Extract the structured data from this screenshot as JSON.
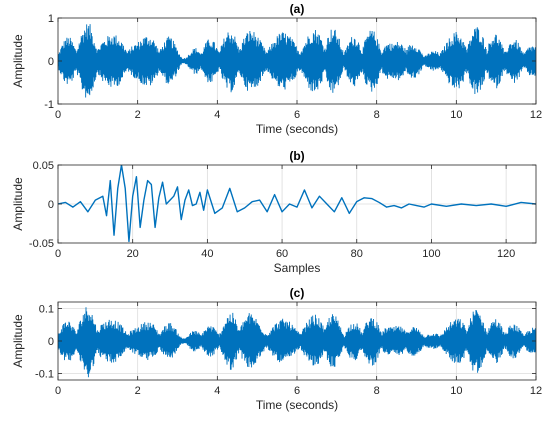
{
  "chart_data": [
    {
      "type": "line",
      "title": "(a)",
      "xlabel": "Time (seconds)",
      "ylabel": "Amplitude",
      "xlim": [
        0,
        12
      ],
      "ylim": [
        -1,
        1
      ],
      "xticks": [
        0,
        2,
        4,
        6,
        8,
        10,
        12
      ],
      "yticks": [
        -1,
        0,
        1
      ],
      "grid": true,
      "color": "#0072BD",
      "series": [
        {
          "x": [
            0.0,
            0.4,
            0.8,
            1.2,
            1.6,
            2.0,
            2.4,
            2.8,
            3.2,
            3.6,
            4.0,
            4.4,
            4.8,
            5.2,
            5.6,
            6.0,
            6.4,
            6.8,
            7.2,
            7.6,
            8.0,
            8.4,
            8.8,
            9.2,
            9.6,
            10.0,
            10.4,
            10.8,
            11.2,
            11.6,
            12.0
          ],
          "envelope": [
            0.45,
            0.65,
            0.95,
            0.6,
            0.7,
            0.5,
            0.7,
            0.6,
            0.1,
            0.5,
            0.55,
            0.8,
            0.75,
            0.6,
            0.7,
            0.6,
            0.75,
            0.9,
            0.5,
            0.7,
            0.75,
            0.4,
            0.75,
            0.1,
            0.5,
            0.7,
            0.85,
            0.75,
            0.55,
            0.5,
            0.35
          ]
        }
      ]
    },
    {
      "type": "line",
      "title": "(b)",
      "xlabel": "Samples",
      "ylabel": "Amplitude",
      "xlim": [
        0,
        128
      ],
      "ylim": [
        -0.05,
        0.05
      ],
      "xticks": [
        0,
        20,
        40,
        60,
        80,
        100,
        120
      ],
      "yticks": [
        -0.05,
        0,
        0.05
      ],
      "grid": true,
      "color": "#0072BD",
      "series": [
        {
          "x": [
            0,
            2,
            4,
            6,
            8,
            10,
            12,
            13,
            14,
            15,
            16,
            17,
            18,
            19,
            20,
            21,
            22,
            23,
            24,
            25,
            26,
            27,
            28,
            29,
            30,
            31,
            32,
            33,
            34,
            35,
            36,
            37,
            38,
            39,
            40,
            42,
            44,
            46,
            48,
            50,
            52,
            54,
            56,
            58,
            60,
            62,
            64,
            66,
            68,
            70,
            72,
            74,
            76,
            78,
            80,
            82,
            84,
            86,
            88,
            90,
            92,
            94,
            96,
            98,
            100,
            104,
            108,
            112,
            116,
            120,
            124,
            128
          ],
          "y": [
            0.0,
            0.002,
            -0.004,
            0.003,
            -0.01,
            0.005,
            0.01,
            -0.015,
            0.03,
            -0.04,
            0.02,
            0.05,
            0.02,
            -0.048,
            0.01,
            0.035,
            -0.03,
            0.005,
            0.03,
            0.025,
            -0.03,
            0.008,
            0.028,
            0.0,
            0.005,
            0.01,
            0.022,
            -0.02,
            0.005,
            0.018,
            -0.002,
            0.0,
            0.015,
            -0.008,
            0.018,
            -0.012,
            -0.005,
            0.02,
            -0.01,
            -0.005,
            0.003,
            0.005,
            -0.01,
            0.012,
            -0.01,
            0.0,
            -0.004,
            0.018,
            -0.005,
            0.01,
            0.0,
            -0.01,
            0.008,
            -0.012,
            0.003,
            0.008,
            0.007,
            0.002,
            -0.004,
            -0.002,
            -0.005,
            0.0,
            -0.002,
            -0.004,
            0.0,
            -0.003,
            0.0,
            -0.002,
            0.0,
            -0.003,
            0.002,
            0.0
          ]
        }
      ]
    },
    {
      "type": "line",
      "title": "(c)",
      "xlabel": "Time (seconds)",
      "ylabel": "Amplitude",
      "xlim": [
        0,
        12
      ],
      "ylim": [
        -0.12,
        0.12
      ],
      "xticks": [
        0,
        2,
        4,
        6,
        8,
        10,
        12
      ],
      "yticks": [
        -0.1,
        0,
        0.1
      ],
      "grid": true,
      "color": "#0072BD",
      "series": [
        {
          "x": [
            0.0,
            0.4,
            0.8,
            1.2,
            1.6,
            2.0,
            2.4,
            2.8,
            3.2,
            3.6,
            4.0,
            4.4,
            4.8,
            5.2,
            5.6,
            6.0,
            6.4,
            6.8,
            7.2,
            7.6,
            8.0,
            8.4,
            8.8,
            9.2,
            9.6,
            10.0,
            10.4,
            10.8,
            11.2,
            11.6,
            12.0
          ],
          "envelope": [
            0.06,
            0.07,
            0.12,
            0.07,
            0.07,
            0.05,
            0.07,
            0.06,
            0.015,
            0.05,
            0.05,
            0.1,
            0.09,
            0.06,
            0.07,
            0.06,
            0.08,
            0.1,
            0.05,
            0.07,
            0.08,
            0.04,
            0.08,
            0.015,
            0.05,
            0.07,
            0.11,
            0.08,
            0.06,
            0.05,
            0.04
          ]
        }
      ]
    }
  ]
}
